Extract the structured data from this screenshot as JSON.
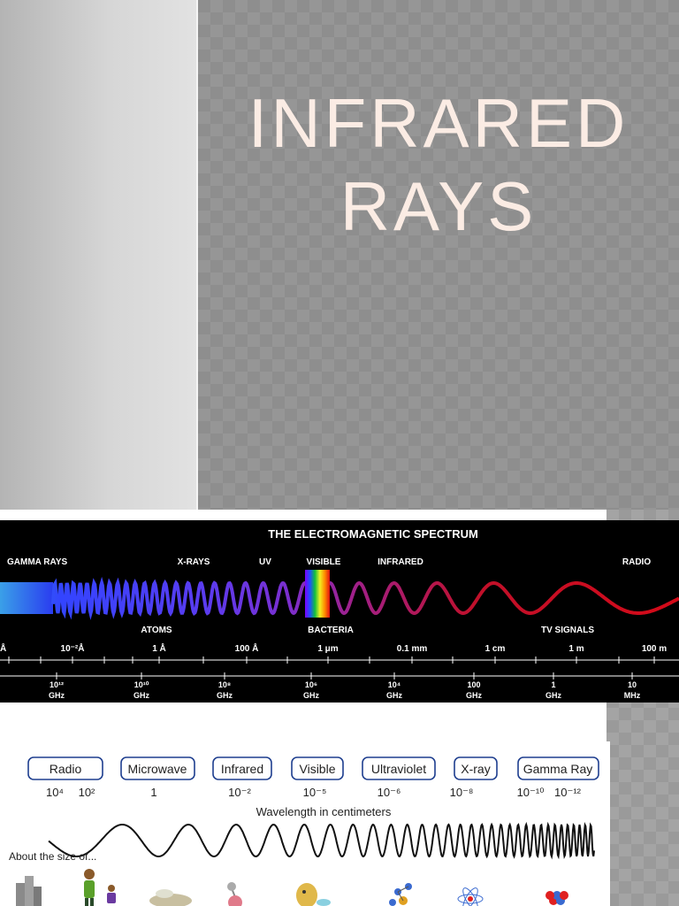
{
  "slide": {
    "title_line1": "INFRARED",
    "title_line2": "RAYS"
  },
  "em_spectrum": {
    "title": "THE ELECTROMAGNETIC SPECTRUM",
    "bands": [
      "GAMMA RAYS",
      "X-RAYS",
      "UV",
      "VISIBLE",
      "INFRARED",
      "RADIO"
    ],
    "objects": [
      "ATOMS",
      "BACTERIA",
      "TV SIGNALS"
    ],
    "wavelengths": [
      "Å",
      "10⁻²Å",
      "1 Å",
      "100 Å",
      "1 μm",
      "0.1 mm",
      "1 cm",
      "1 m",
      "100 m"
    ],
    "frequencies": [
      {
        "value": "10¹²",
        "unit": "GHz"
      },
      {
        "value": "10¹⁰",
        "unit": "GHz"
      },
      {
        "value": "10⁸",
        "unit": "GHz"
      },
      {
        "value": "10⁶",
        "unit": "GHz"
      },
      {
        "value": "10⁴",
        "unit": "GHz"
      },
      {
        "value": "100",
        "unit": "GHz"
      },
      {
        "value": "1",
        "unit": "GHz"
      },
      {
        "value": "10",
        "unit": "MHz"
      }
    ]
  },
  "scale_diagram": {
    "bands": [
      {
        "label": "Radio",
        "values": [
          "10⁴",
          "10²"
        ]
      },
      {
        "label": "Microwave",
        "values": [
          "1"
        ]
      },
      {
        "label": "Infrared",
        "values": [
          "10⁻²"
        ]
      },
      {
        "label": "Visible",
        "values": [
          "10⁻⁵"
        ]
      },
      {
        "label": "Ultraviolet",
        "values": [
          "10⁻⁶"
        ]
      },
      {
        "label": "X-ray",
        "values": [
          "10⁻⁸"
        ]
      },
      {
        "label": "Gamma Ray",
        "values": [
          "10⁻¹⁰",
          "10⁻¹²"
        ]
      }
    ],
    "axis_label": "Wavelength in centimeters",
    "size_caption": "About the size of..."
  }
}
